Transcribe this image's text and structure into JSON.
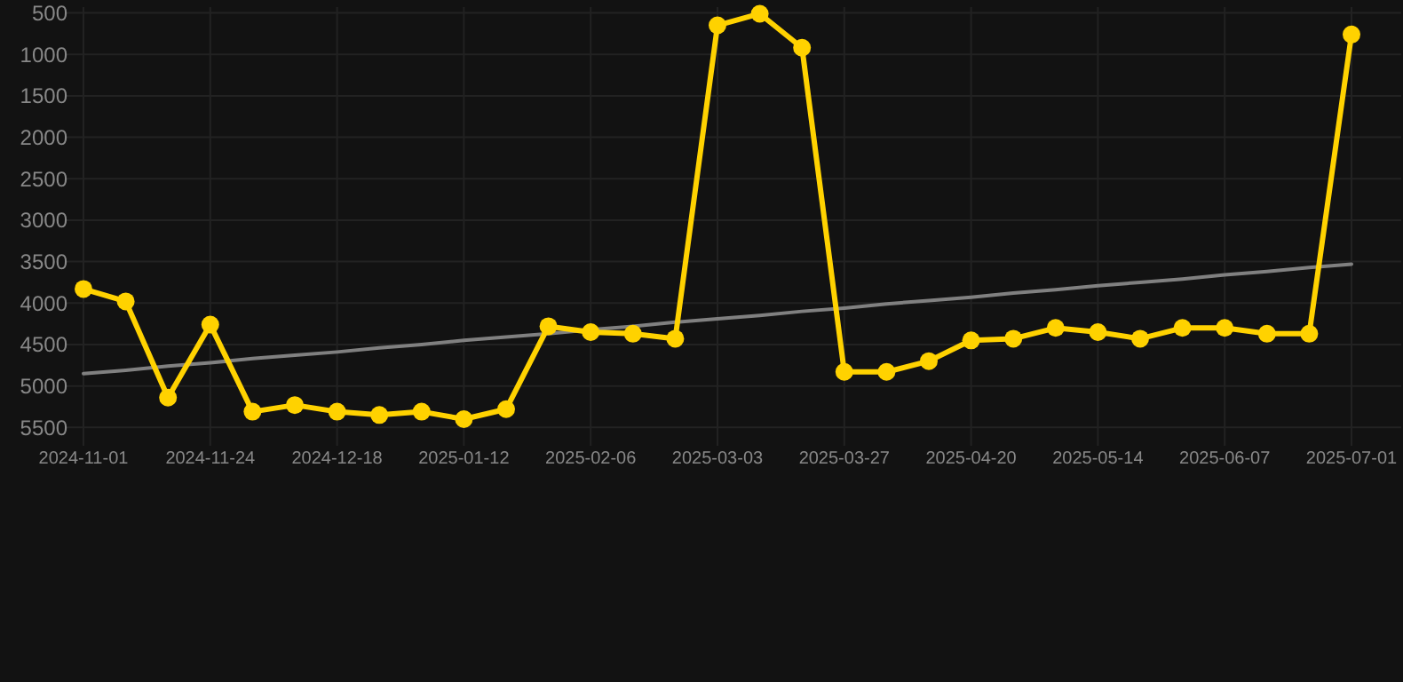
{
  "chart_data": {
    "type": "line",
    "categories": [
      "2024-11-01",
      null,
      null,
      "2024-11-24",
      null,
      null,
      "2024-12-18",
      null,
      null,
      "2025-01-12",
      null,
      null,
      "2025-02-06",
      null,
      null,
      "2025-03-03",
      null,
      null,
      "2025-03-27",
      null,
      null,
      "2025-04-20",
      null,
      null,
      "2025-05-14",
      null,
      null,
      "2025-06-07",
      null,
      null,
      "2025-07-01"
    ],
    "series": [
      {
        "color": "#ffd200",
        "marker": "circle",
        "values": [
          3830,
          3980,
          5140,
          4260,
          5310,
          5230,
          5310,
          5350,
          5310,
          5400,
          5280,
          4280,
          4350,
          4370,
          4430,
          650,
          510,
          920,
          4830,
          4830,
          4700,
          4450,
          4430,
          4300,
          4350,
          4430,
          4300,
          4300,
          4370,
          4370,
          760
        ]
      },
      {
        "type": "line",
        "color": "#808080",
        "marker": "none",
        "values": [
          4850,
          4810,
          4760,
          4720,
          4670,
          4630,
          4590,
          4540,
          4500,
          4450,
          4410,
          4370,
          4320,
          4280,
          4230,
          4190,
          4150,
          4100,
          4060,
          4010,
          3970,
          3930,
          3880,
          3840,
          3790,
          3750,
          3710,
          3660,
          3620,
          3570,
          3530
        ]
      }
    ],
    "ylim": [
      5550,
      430
    ],
    "yticks": [
      500,
      1000,
      1500,
      2000,
      2500,
      3000,
      3500,
      4000,
      4500,
      5000,
      5500
    ],
    "grid": true
  }
}
